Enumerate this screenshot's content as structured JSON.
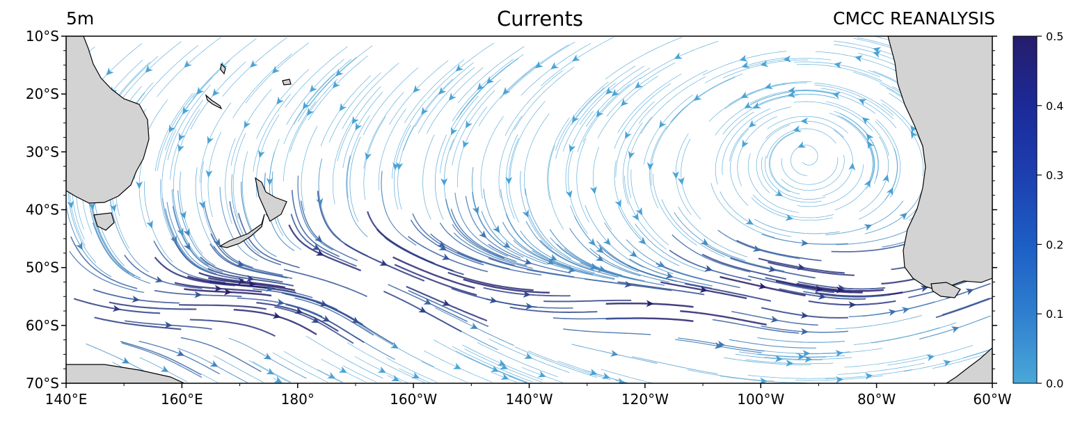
{
  "header": {
    "depth": "5m",
    "title": "Currents",
    "source": "CMCC REANALYSIS"
  },
  "map": {
    "lon_range": [
      140,
      300
    ],
    "lat_range": [
      -70,
      -10
    ],
    "lon_ticks": [
      {
        "lon": 140,
        "label": "140°E"
      },
      {
        "lon": 160,
        "label": "160°E"
      },
      {
        "lon": 180,
        "label": "180°"
      },
      {
        "lon": 200,
        "label": "160°W"
      },
      {
        "lon": 220,
        "label": "140°W"
      },
      {
        "lon": 240,
        "label": "120°W"
      },
      {
        "lon": 260,
        "label": "100°W"
      },
      {
        "lon": 280,
        "label": "80°W"
      },
      {
        "lon": 300,
        "label": "60°W"
      }
    ],
    "lat_ticks": [
      {
        "lat": -10,
        "label": "10°S"
      },
      {
        "lat": -20,
        "label": "20°S"
      },
      {
        "lat": -30,
        "label": "30°S"
      },
      {
        "lat": -40,
        "label": "40°S"
      },
      {
        "lat": -50,
        "label": "50°S"
      },
      {
        "lat": -60,
        "label": "60°S"
      },
      {
        "lat": -70,
        "label": "70°S"
      }
    ],
    "land_color": "#d3d3d3",
    "flow_color_slow": "#4aa3d6",
    "flow_color_fast": "#261d6b"
  },
  "colorbar": {
    "min": 0.0,
    "max": 0.5,
    "ticks": [
      "0.0",
      "0.1",
      "0.2",
      "0.3",
      "0.4",
      "0.5"
    ],
    "colors": [
      "#4aa8d8",
      "#2f7fcf",
      "#1d5ec4",
      "#1d3fb0",
      "#1c2a98",
      "#261d6b"
    ]
  }
}
